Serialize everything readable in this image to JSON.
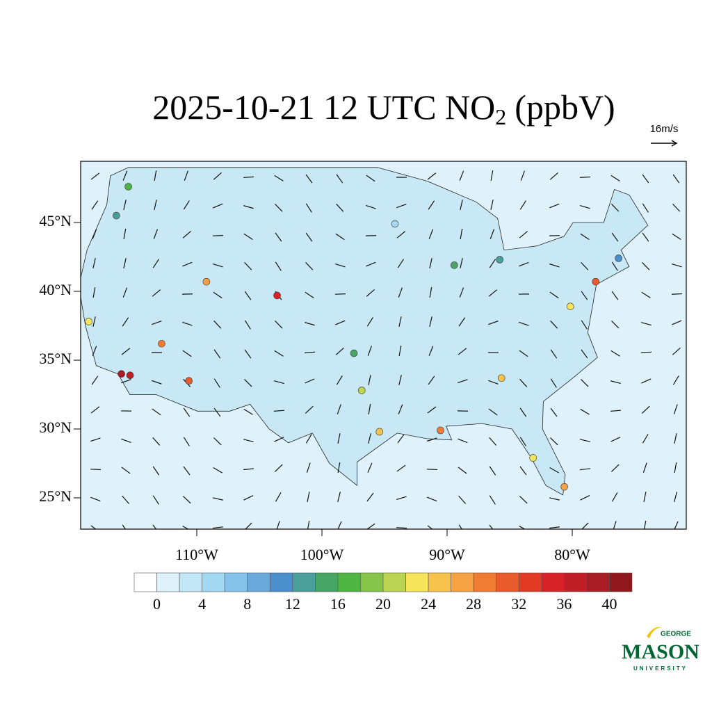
{
  "title": {
    "main": "2025-10-21 12 UTC NO",
    "subscript": "2",
    "unit": "(ppbV)"
  },
  "wind_scale": "16m/s",
  "map": {
    "lat_ticks": [
      {
        "value": 45,
        "label": "45°N"
      },
      {
        "value": 40,
        "label": "40°N"
      },
      {
        "value": 35,
        "label": "35°N"
      },
      {
        "value": 30,
        "label": "30°N"
      },
      {
        "value": 25,
        "label": "25°N"
      }
    ],
    "lon_ticks": [
      {
        "value": -110,
        "label": "110°W"
      },
      {
        "value": -100,
        "label": "100°W"
      },
      {
        "value": -90,
        "label": "90°W"
      },
      {
        "value": -80,
        "label": "80°W"
      }
    ]
  },
  "colorbar": {
    "lim": [
      -2,
      42
    ],
    "ticks": [
      0,
      4,
      8,
      12,
      16,
      20,
      24,
      28,
      32,
      36,
      40
    ],
    "colors": [
      "#ffffff",
      "#dff2fb",
      "#c2e7f7",
      "#a3d8f3",
      "#86c3ea",
      "#69a9dc",
      "#4a8fcb",
      "#4a9f9a",
      "#47a565",
      "#4fb542",
      "#86c44a",
      "#bcd454",
      "#f6e55a",
      "#f8c34c",
      "#f6a144",
      "#f07c34",
      "#e95a2c",
      "#e33a26",
      "#d8222a",
      "#c01f27",
      "#a81c23",
      "#8e181c"
    ]
  },
  "stations": [
    {
      "lon": -118.2,
      "lat": 34.0,
      "value": 38
    },
    {
      "lon": -117.4,
      "lat": 33.9,
      "value": 36
    },
    {
      "lon": -122.3,
      "lat": 37.8,
      "value": 22
    },
    {
      "lon": -122.3,
      "lat": 47.6,
      "value": 16
    },
    {
      "lon": -122.6,
      "lat": 45.5,
      "value": 12
    },
    {
      "lon": -112.1,
      "lat": 33.5,
      "value": 30
    },
    {
      "lon": -115.1,
      "lat": 36.2,
      "value": 28
    },
    {
      "lon": -111.9,
      "lat": 40.7,
      "value": 26
    },
    {
      "lon": -104.9,
      "lat": 39.7,
      "value": 34
    },
    {
      "lon": -95.3,
      "lat": 29.8,
      "value": 24
    },
    {
      "lon": -96.8,
      "lat": 32.8,
      "value": 20
    },
    {
      "lon": -87.6,
      "lat": 41.9,
      "value": 14
    },
    {
      "lon": -74.0,
      "lat": 40.7,
      "value": 30
    },
    {
      "lon": -84.4,
      "lat": 33.7,
      "value": 24
    },
    {
      "lon": -80.2,
      "lat": 25.8,
      "value": 26
    },
    {
      "lon": -83.0,
      "lat": 42.3,
      "value": 12
    },
    {
      "lon": -77.0,
      "lat": 38.9,
      "value": 22
    },
    {
      "lon": -71.1,
      "lat": 42.4,
      "value": 10
    },
    {
      "lon": -93.3,
      "lat": 44.9,
      "value": 4
    },
    {
      "lon": -82.5,
      "lat": 27.9,
      "value": 22
    },
    {
      "lon": -90.1,
      "lat": 29.9,
      "value": 28
    },
    {
      "lon": -97.5,
      "lat": 35.5,
      "value": 14
    }
  ],
  "logo": {
    "top": "GEORGE",
    "main": "MASON",
    "bottom": "UNIVERSITY"
  }
}
